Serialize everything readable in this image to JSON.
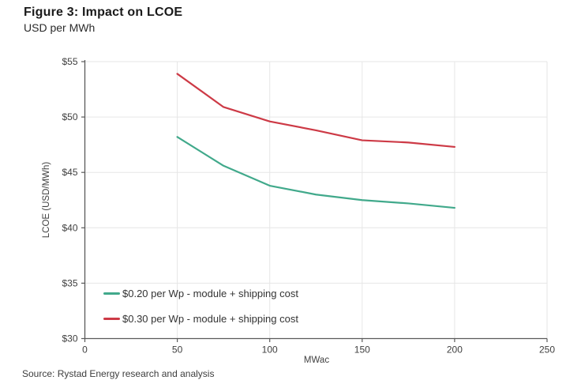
{
  "header": {
    "title": "Figure 3: Impact on LCOE",
    "subtitle": "USD per MWh"
  },
  "source_note": "Source: Rystad Energy research and analysis",
  "chart_data": {
    "type": "line",
    "title": "Figure 3: Impact on LCOE",
    "subtitle": "USD per MWh",
    "xlabel": "MWac",
    "ylabel": "LCOE (USD/MWh)",
    "xlim": [
      0,
      250
    ],
    "ylim": [
      30,
      55
    ],
    "grid": true,
    "legend_position": "inside-bottom-left",
    "x": [
      50,
      75,
      100,
      125,
      150,
      175,
      200
    ],
    "series": [
      {
        "name": "$0.20 per Wp - module + shipping cost",
        "color": "#41a98b",
        "values": [
          48.2,
          45.6,
          43.8,
          43.0,
          42.5,
          42.2,
          41.8
        ]
      },
      {
        "name": "$0.30 per Wp - module + shipping cost",
        "color": "#cd3a46",
        "values": [
          53.9,
          50.9,
          49.6,
          48.8,
          47.9,
          47.7,
          47.3
        ]
      }
    ],
    "x_ticks": [
      {
        "value": 0,
        "label": "0"
      },
      {
        "value": 50,
        "label": "50"
      },
      {
        "value": 100,
        "label": "100"
      },
      {
        "value": 150,
        "label": "150"
      },
      {
        "value": 200,
        "label": "200"
      },
      {
        "value": 250,
        "label": "250"
      }
    ],
    "y_ticks": [
      {
        "value": 30,
        "label": "$30"
      },
      {
        "value": 35,
        "label": "$35"
      },
      {
        "value": 40,
        "label": "$40"
      },
      {
        "value": 45,
        "label": "$45"
      },
      {
        "value": 50,
        "label": "$50"
      },
      {
        "value": 55,
        "label": "$55"
      }
    ]
  }
}
